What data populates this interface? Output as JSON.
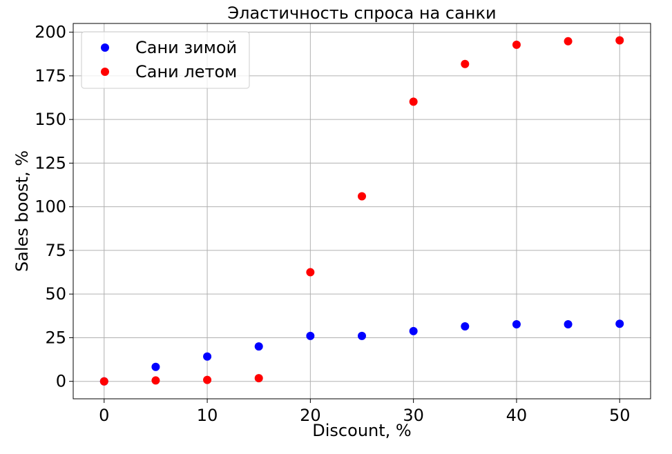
{
  "chart_data": {
    "type": "scatter",
    "title": "Эластичность спроса на санки",
    "xlabel": "Discount, %",
    "ylabel": "Sales boost, %",
    "xlim": [
      -3,
      53
    ],
    "ylim": [
      -10,
      205
    ],
    "xticks": [
      0,
      10,
      20,
      30,
      40,
      50
    ],
    "yticks": [
      0,
      25,
      50,
      75,
      100,
      125,
      150,
      175,
      200
    ],
    "grid": true,
    "legend_position": "top-left",
    "x": [
      0,
      5,
      10,
      15,
      20,
      25,
      30,
      35,
      40,
      45,
      50
    ],
    "series": [
      {
        "name": "Сани зимой",
        "color": "#0000ff",
        "values": [
          0,
          8.3,
          14.2,
          20,
          26,
          26,
          28.8,
          31.5,
          32.7,
          32.7,
          33
        ]
      },
      {
        "name": "Сани летом",
        "color": "#ff0000",
        "values": [
          0,
          0.5,
          0.8,
          1.8,
          62.5,
          106,
          160.2,
          181.8,
          192.8,
          194.8,
          195.3
        ]
      }
    ]
  }
}
